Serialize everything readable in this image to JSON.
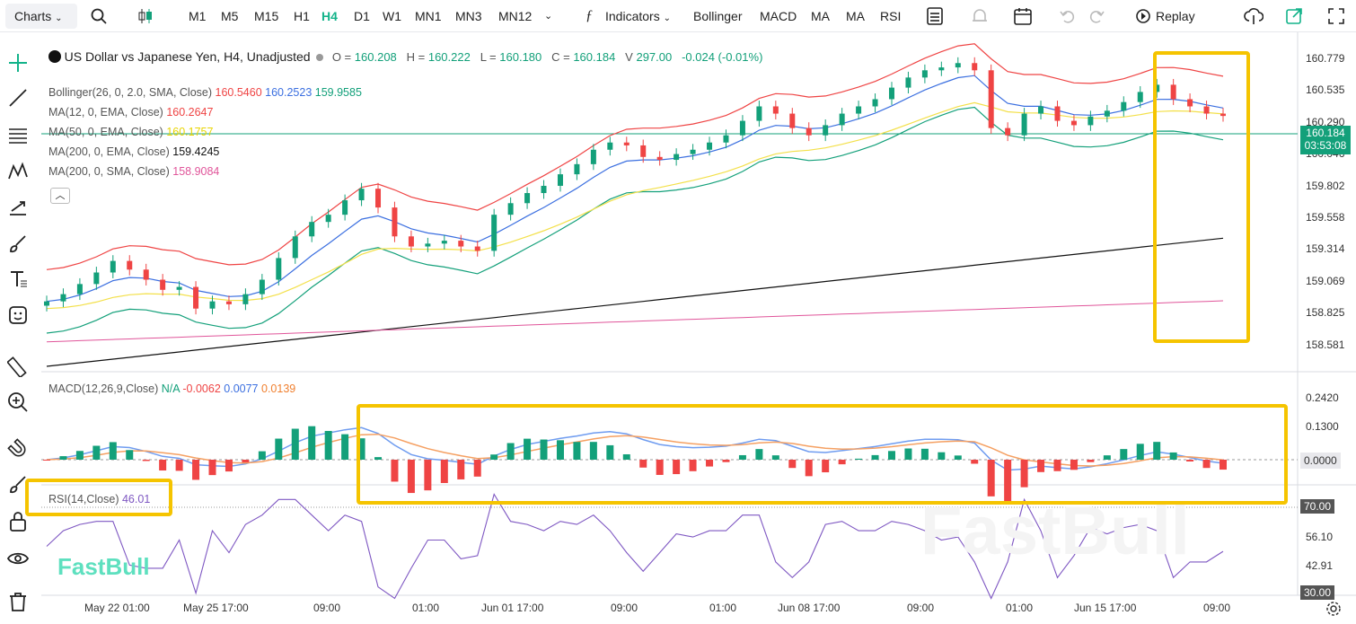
{
  "toolbar": {
    "charts_label": "Charts",
    "timeframes": [
      "M1",
      "M5",
      "M15",
      "H1",
      "H4",
      "D1",
      "W1",
      "MN1",
      "MN3",
      "MN12"
    ],
    "active_timeframe": "H4",
    "indicators_label": "Indicators",
    "quick_indicators": [
      "Bollinger",
      "MACD",
      "MA",
      "MA",
      "RSI"
    ],
    "replay_label": "Replay"
  },
  "symbol": {
    "title": "US Dollar vs Japanese Yen, H4, Unadjusted",
    "open_label": "O =",
    "open": "160.208",
    "high_label": "H =",
    "high": "160.222",
    "low_label": "L =",
    "low": "160.180",
    "close_label": "C =",
    "close": "160.184",
    "volume_label": "V",
    "volume": "297.00",
    "change": "-0.024 (-0.01%)"
  },
  "indicators": {
    "bollinger": {
      "label": "Bollinger(26, 0, 2.0, SMA, Close)",
      "v1": "160.5460",
      "v2": "160.2523",
      "v3": "159.9585"
    },
    "ma1": {
      "label": "MA(12, 0, EMA, Close)",
      "value": "160.2647"
    },
    "ma2": {
      "label": "MA(50, 0, EMA, Close)",
      "value": "160.1757"
    },
    "ma3": {
      "label": "MA(200, 0, EMA, Close)",
      "value": "159.4245"
    },
    "ma4": {
      "label": "MA(200, 0, SMA, Close)",
      "value": "158.9084"
    },
    "macd": {
      "label": "MACD(12,26,9,Close)",
      "na": "N/A",
      "v1": "-0.0062",
      "v2": "0.0077",
      "v3": "0.0139"
    },
    "rsi": {
      "label": "RSI(14,Close)",
      "value": "46.01"
    }
  },
  "price_axis": [
    "160.779",
    "160.535",
    "160.290",
    "160.046",
    "159.802",
    "159.558",
    "159.314",
    "159.069",
    "158.825",
    "158.581"
  ],
  "current_price": {
    "price": "160.184",
    "countdown": "03:53:08"
  },
  "macd_axis": [
    "0.2420",
    "0.1300",
    "0.0000"
  ],
  "rsi_axis": [
    "70.00",
    "56.10",
    "42.91",
    "30.00"
  ],
  "time_axis": [
    "May 22 01:00",
    "May 25 17:00",
    "09:00",
    "01:00",
    "Jun 01 17:00",
    "09:00",
    "01:00",
    "Jun 08 17:00",
    "09:00",
    "01:00",
    "Jun 15 17:00",
    "09:00"
  ],
  "watermark": "FastBull",
  "colors": {
    "up": "#13a07a",
    "down": "#ef4444",
    "accent": "#13b38a",
    "highlight": "#f5c400"
  },
  "chart_data": {
    "type": "candlestick",
    "close_series": [
      158.9,
      158.95,
      159.02,
      159.1,
      159.18,
      159.12,
      159.05,
      158.98,
      159.0,
      158.85,
      158.9,
      158.88,
      158.95,
      159.05,
      159.2,
      159.35,
      159.45,
      159.5,
      159.6,
      159.68,
      159.55,
      159.35,
      159.28,
      159.3,
      159.32,
      159.28,
      159.25,
      159.5,
      159.58,
      159.65,
      159.7,
      159.78,
      159.85,
      159.95,
      160.0,
      159.98,
      159.9,
      159.88,
      159.92,
      159.95,
      160.0,
      160.05,
      160.15,
      160.25,
      160.2,
      160.1,
      160.05,
      160.12,
      160.2,
      160.25,
      160.3,
      160.38,
      160.45,
      160.5,
      160.52,
      160.55,
      160.5,
      160.1,
      160.05,
      160.2,
      160.25,
      160.15,
      160.12,
      160.18,
      160.22,
      160.28,
      160.35,
      160.4,
      160.3,
      160.25,
      160.2,
      160.184
    ],
    "ylim": [
      158.5,
      160.85
    ]
  }
}
